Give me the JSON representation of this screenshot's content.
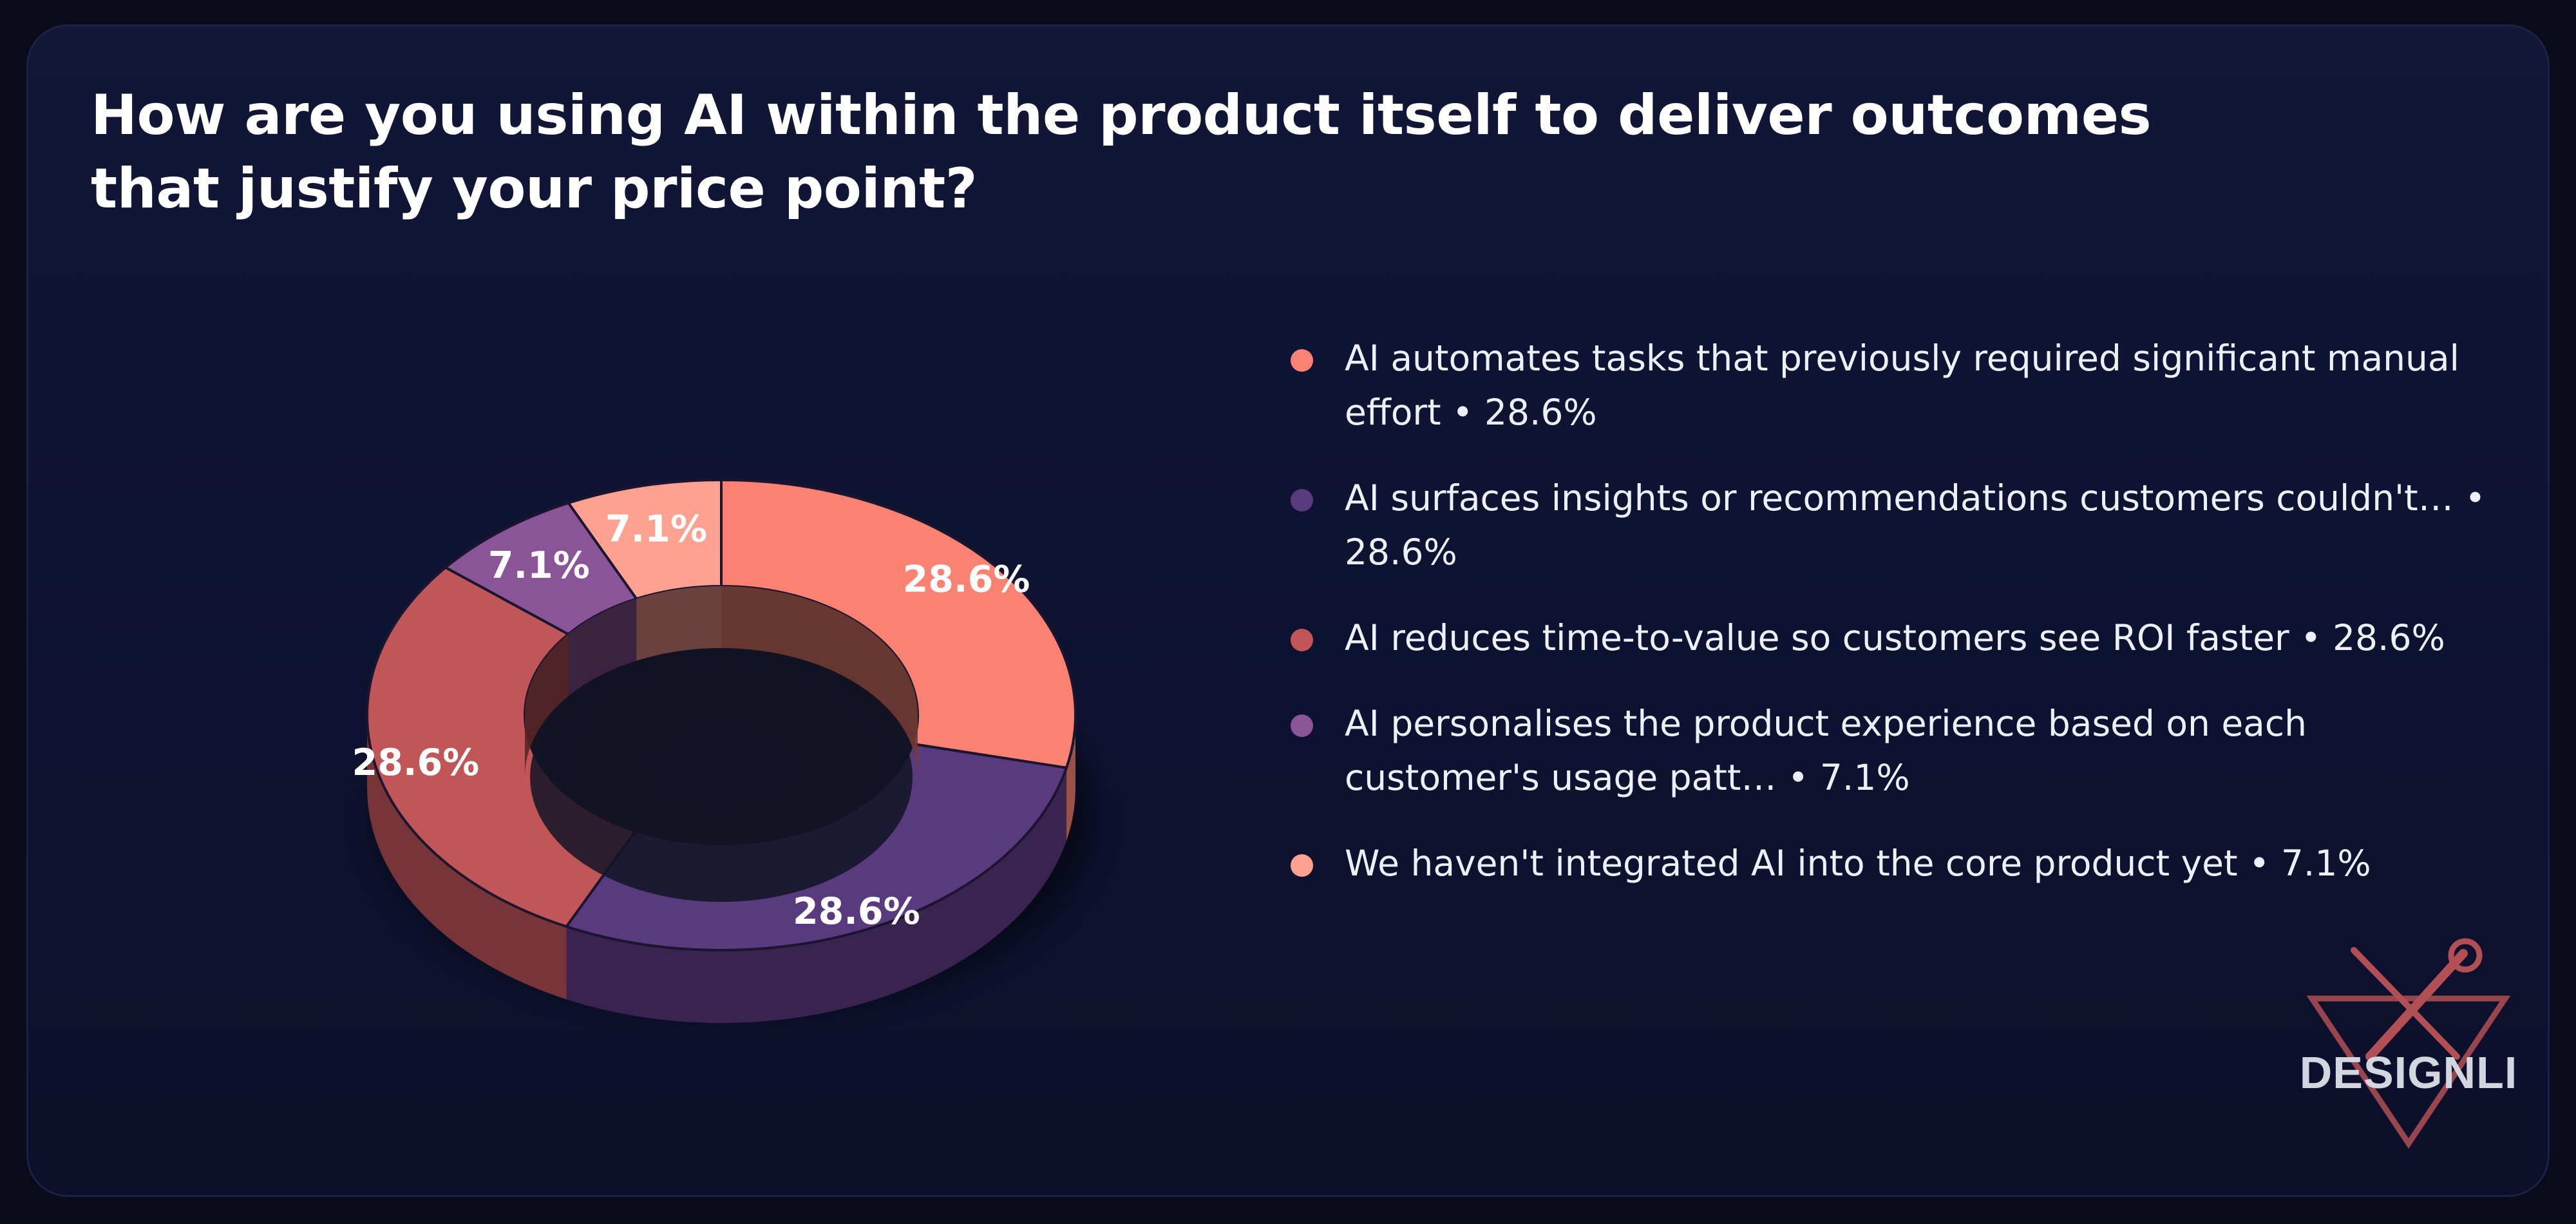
{
  "title": "How are you using AI within the product itself to deliver outcomes that justify your price point?",
  "logo": {
    "text": "DESIGNLI",
    "icon": "wrench-screwdriver-triangle-icon"
  },
  "legend": [
    {
      "label": "AI automates tasks that previously required significant manual effort • 28.6%",
      "color": "#f98272"
    },
    {
      "label": "AI surfaces insights or recommendations customers couldn't… • 28.6%",
      "color": "#5a3a7e"
    },
    {
      "label": "AI reduces time-to-value so customers see ROI faster • 28.6%",
      "color": "#c05658"
    },
    {
      "label": "AI personalises the product experience based on each customer's usage patt… • 7.1%",
      "color": "#8a5597"
    },
    {
      "label": "We haven't integrated AI into the core product yet • 7.1%",
      "color": "#ffa191"
    }
  ],
  "chart_data": {
    "type": "pie",
    "style": "3d-donut",
    "categories": [
      "AI automates tasks that previously required significant manual effort",
      "AI surfaces insights or recommendations customers couldn't…",
      "AI reduces time-to-value so customers see ROI faster",
      "AI personalises the product experience based on each customer's usage patt…",
      "We haven't integrated AI into the core product yet"
    ],
    "values": [
      28.6,
      28.6,
      28.6,
      7.1,
      7.1
    ],
    "value_labels": [
      "28.6%",
      "28.6%",
      "28.6%",
      "7.1%",
      "7.1%"
    ],
    "colors": [
      "#f98272",
      "#5a3a7e",
      "#c05658",
      "#8a5597",
      "#ffa191"
    ],
    "legend_position": "right"
  }
}
